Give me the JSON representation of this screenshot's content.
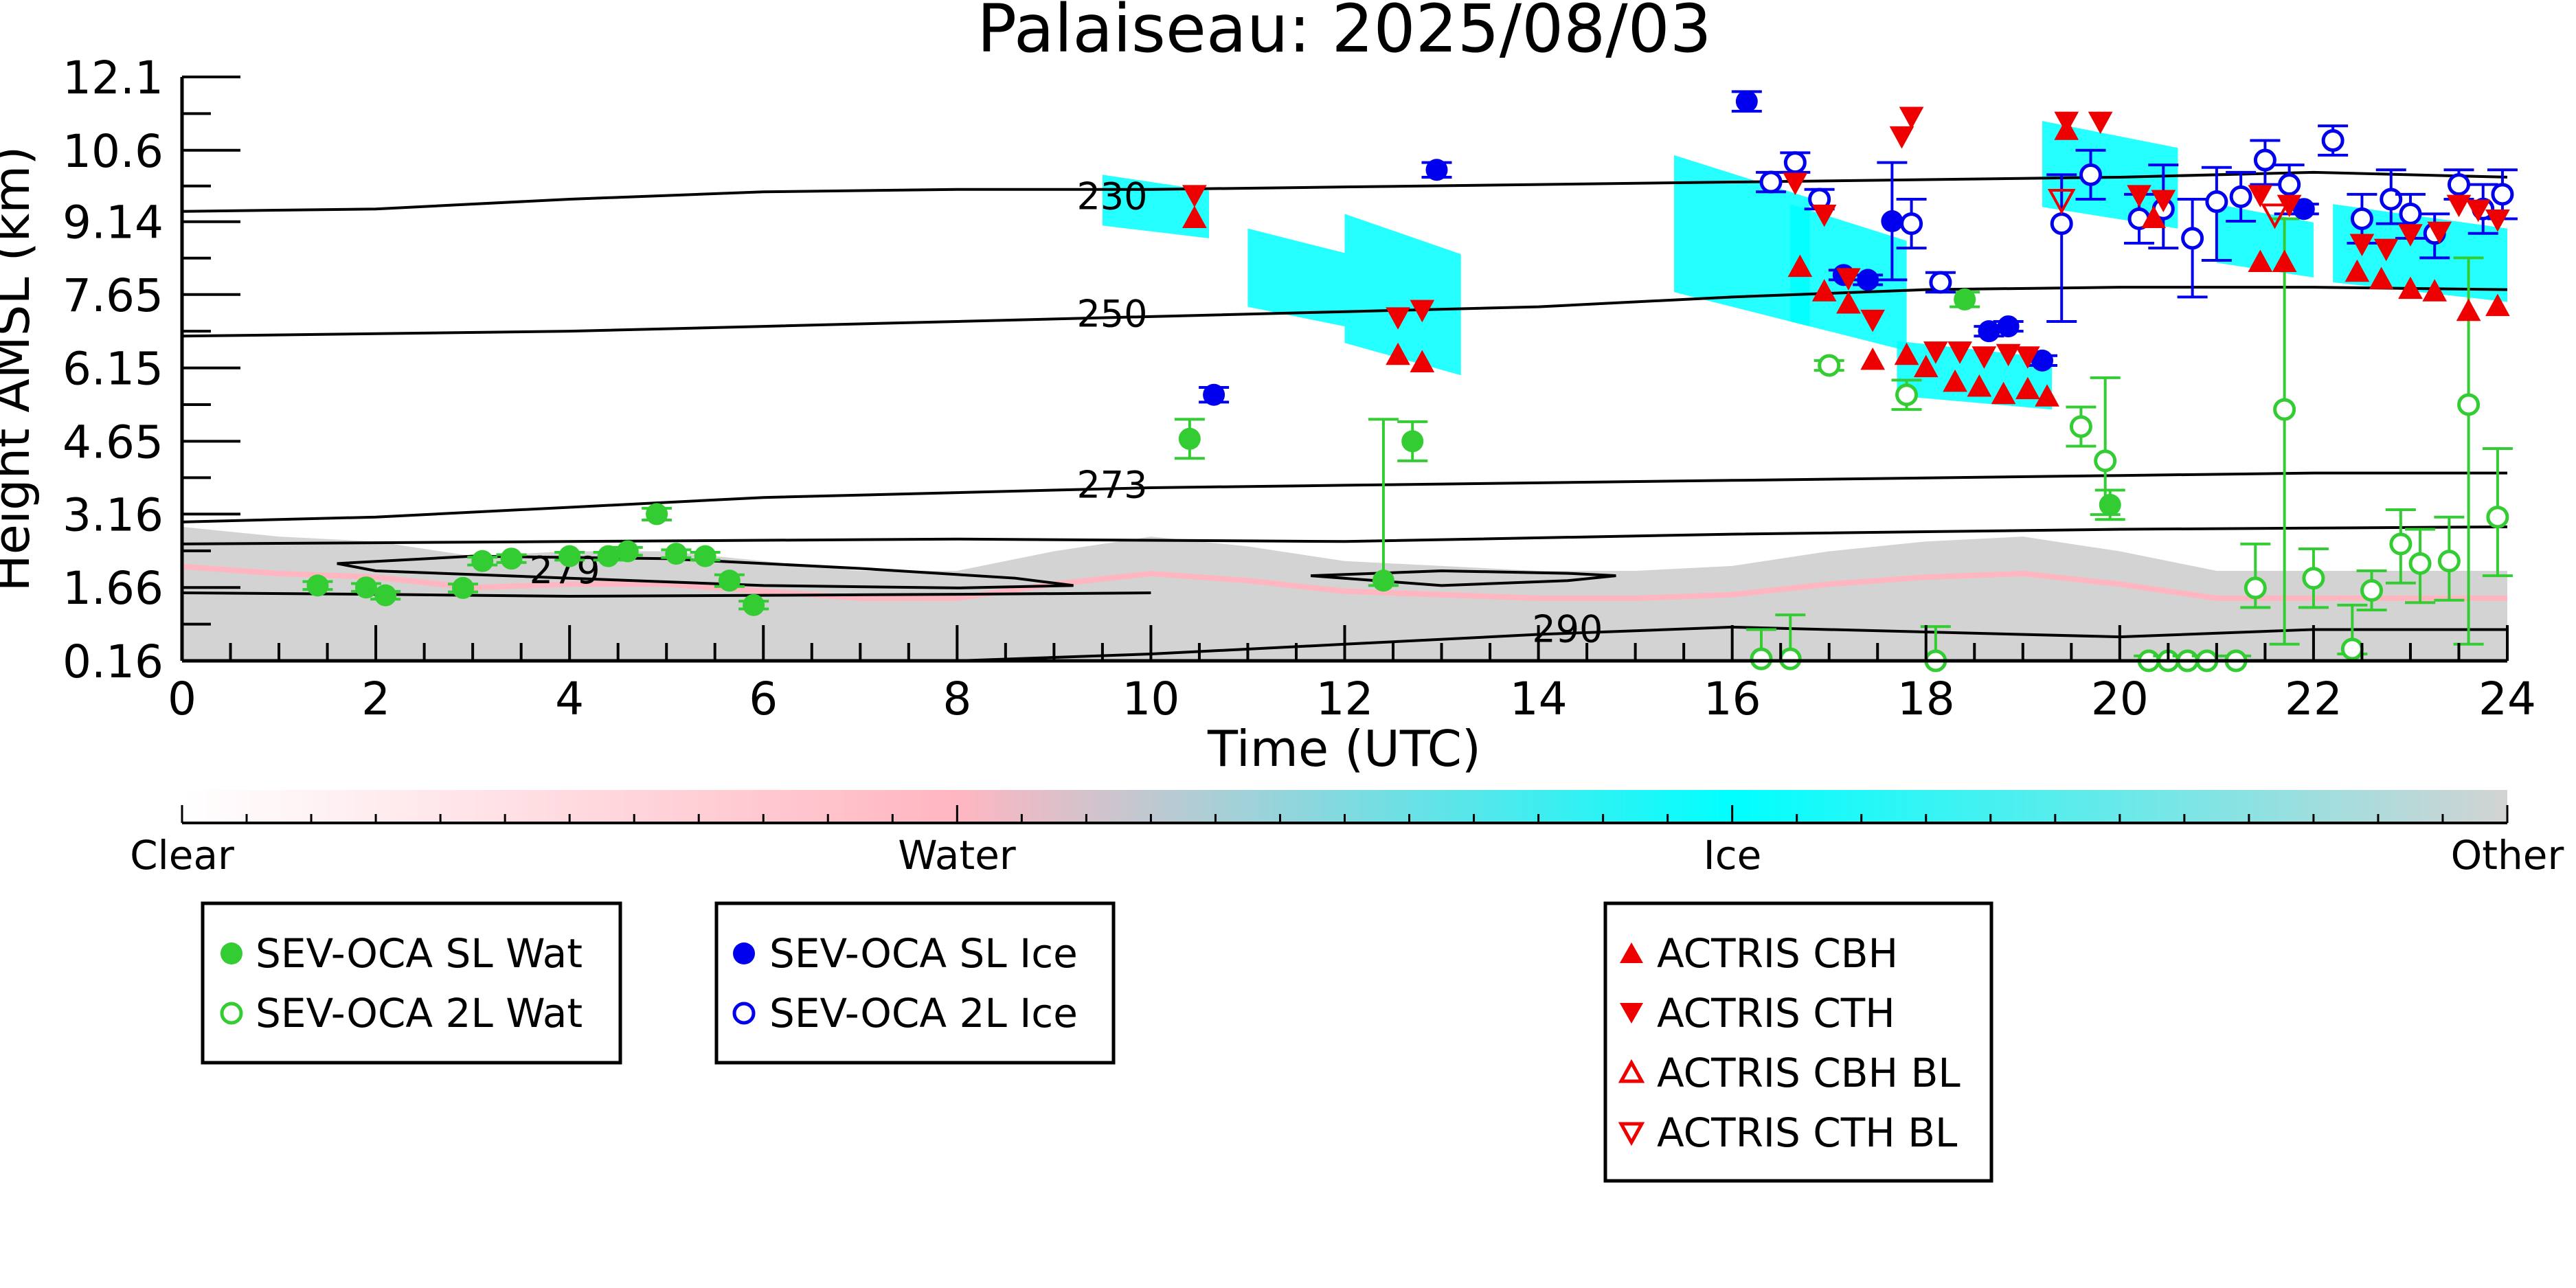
{
  "chart_data": {
    "type": "scatter",
    "title": "Palaiseau: 2025/08/03",
    "xlabel": "Time (UTC)",
    "ylabel": "Height AMSL (km)",
    "xlim": [
      0,
      24
    ],
    "ylim": [
      0.16,
      12.1
    ],
    "x_ticks": [
      "0",
      "2",
      "4",
      "6",
      "8",
      "10",
      "12",
      "14",
      "16",
      "18",
      "20",
      "22",
      "24"
    ],
    "y_ticks": [
      "0.16",
      "1.66",
      "3.16",
      "4.65",
      "6.15",
      "7.65",
      "9.14",
      "10.6",
      "12.1"
    ],
    "y_tick_values": [
      0.16,
      1.66,
      3.16,
      4.65,
      6.15,
      7.65,
      9.14,
      10.6,
      12.1
    ],
    "colorbar": {
      "labels": [
        "Clear",
        "Water",
        "Ice",
        "Other"
      ],
      "colors": [
        "#ffffff",
        "#ffb6c1",
        "#00ffff",
        "#d3d3d3"
      ]
    },
    "background_regions": [
      {
        "kind": "Other",
        "color": "#d3d3d3",
        "x": [
          0,
          24
        ],
        "y_top": [
          2.9,
          2.7,
          2.6,
          2.3,
          2.4,
          2.4,
          2.2,
          2.0,
          2.0,
          2.4,
          2.7,
          2.5,
          2.2,
          2.1,
          2.0,
          2.0,
          2.1,
          2.4,
          2.6,
          2.7,
          2.4,
          2.0,
          2.0,
          2.0,
          2.0
        ]
      },
      {
        "kind": "Ice",
        "color": "#00ffff",
        "x": [
          9.5,
          10.6
        ],
        "y": [
          8.8,
          10.1
        ]
      },
      {
        "kind": "Ice",
        "color": "#00ffff",
        "x": [
          11.0,
          12.0
        ],
        "y": [
          7.0,
          9.0
        ]
      },
      {
        "kind": "Ice",
        "color": "#00ffff",
        "x": [
          12.0,
          13.2
        ],
        "y": [
          6.0,
          9.3
        ]
      },
      {
        "kind": "Ice",
        "color": "#00ffff",
        "x": [
          15.4,
          16.8
        ],
        "y": [
          7.0,
          10.5
        ]
      },
      {
        "kind": "Ice",
        "color": "#00ffff",
        "x": [
          16.6,
          17.8
        ],
        "y": [
          6.5,
          9.5
        ]
      },
      {
        "kind": "Ice",
        "color": "#00ffff",
        "x": [
          17.7,
          19.3
        ],
        "y": [
          5.3,
          6.7
        ]
      },
      {
        "kind": "Ice",
        "color": "#00ffff",
        "x": [
          19.2,
          20.6
        ],
        "y": [
          9.0,
          11.2
        ]
      },
      {
        "kind": "Ice",
        "color": "#00ffff",
        "x": [
          21.0,
          22.0
        ],
        "y": [
          8.0,
          9.5
        ]
      },
      {
        "kind": "Ice",
        "color": "#00ffff",
        "x": [
          22.2,
          24.0
        ],
        "y": [
          7.5,
          9.5
        ]
      }
    ],
    "contours": [
      {
        "label": "230",
        "label_at": [
          9.6,
          9.65
        ],
        "x": [
          0,
          2,
          4,
          6,
          8,
          10,
          12,
          14,
          16,
          18,
          20,
          22,
          24
        ],
        "y": [
          9.35,
          9.4,
          9.6,
          9.75,
          9.8,
          9.8,
          9.85,
          9.9,
          9.95,
          10.0,
          10.05,
          10.15,
          10.05
        ]
      },
      {
        "label": "250",
        "label_at": [
          9.6,
          7.25
        ],
        "x": [
          0,
          2,
          4,
          6,
          8,
          10,
          12,
          14,
          16,
          18,
          20,
          22,
          24
        ],
        "y": [
          6.8,
          6.85,
          6.9,
          7.0,
          7.1,
          7.2,
          7.3,
          7.4,
          7.6,
          7.75,
          7.8,
          7.8,
          7.75
        ]
      },
      {
        "label": "273",
        "label_at": [
          9.6,
          3.75
        ],
        "x": [
          0,
          2,
          4,
          6,
          8,
          10,
          12,
          14,
          16,
          18,
          20,
          22,
          24
        ],
        "y": [
          3.0,
          3.1,
          3.3,
          3.5,
          3.6,
          3.7,
          3.75,
          3.8,
          3.85,
          3.9,
          3.95,
          4.0,
          4.0
        ]
      },
      {
        "label": "",
        "x": [
          0,
          4,
          8,
          12,
          16,
          20,
          24
        ],
        "y": [
          2.55,
          2.6,
          2.65,
          2.6,
          2.75,
          2.85,
          2.9
        ]
      },
      {
        "label": "279",
        "label_at": [
          3.95,
          2.0
        ],
        "closed": true,
        "x": [
          1.6,
          3.0,
          5.0,
          7.0,
          8.6,
          9.2,
          8.0,
          6.0,
          4.0,
          2.0,
          1.6
        ],
        "y": [
          2.15,
          2.3,
          2.25,
          2.05,
          1.85,
          1.7,
          1.65,
          1.7,
          1.85,
          2.0,
          2.15
        ]
      },
      {
        "label": "",
        "closed": true,
        "x": [
          11.65,
          13.0,
          14.3,
          14.8,
          14.3,
          13.0,
          11.65
        ],
        "y": [
          1.9,
          2.0,
          1.95,
          1.9,
          1.8,
          1.7,
          1.9
        ]
      },
      {
        "label": "",
        "x": [
          0,
          2,
          4,
          6,
          8,
          10
        ],
        "y": [
          1.55,
          1.52,
          1.48,
          1.5,
          1.52,
          1.55
        ]
      },
      {
        "label": "290",
        "label_at": [
          14.3,
          0.8
        ],
        "x": [
          8.0,
          10.0,
          12.0,
          14.0,
          16.0,
          18.0,
          20.0,
          22.0,
          24.0
        ],
        "y": [
          0.16,
          0.3,
          0.5,
          0.7,
          0.85,
          0.75,
          0.65,
          0.8,
          0.8
        ]
      }
    ],
    "series": [
      {
        "name": "SEV-OCA SL Wat",
        "marker": "circle-filled",
        "color": "#33cc33",
        "points": [
          [
            1.4,
            1.7
          ],
          [
            1.9,
            1.66
          ],
          [
            2.1,
            1.5
          ],
          [
            2.9,
            1.65
          ],
          [
            3.1,
            2.2
          ],
          [
            3.4,
            2.25
          ],
          [
            4.0,
            2.3
          ],
          [
            4.4,
            2.3
          ],
          [
            4.6,
            2.4
          ],
          [
            4.9,
            3.16
          ],
          [
            5.1,
            2.35
          ],
          [
            5.4,
            2.3
          ],
          [
            5.65,
            1.8
          ],
          [
            5.9,
            1.3
          ],
          [
            10.4,
            4.7
          ],
          [
            12.4,
            1.8
          ],
          [
            12.7,
            4.65
          ],
          [
            18.4,
            7.55
          ],
          [
            19.9,
            3.35
          ]
        ],
        "err_low": [
          0.08,
          0.08,
          0.08,
          0.08,
          0.08,
          0.08,
          0.08,
          0.08,
          0.08,
          0.12,
          0.08,
          0.08,
          0.12,
          0.08,
          0.4,
          0.1,
          0.4,
          0.15,
          0.3
        ],
        "err_high": [
          0.08,
          0.08,
          0.08,
          0.08,
          0.08,
          0.08,
          0.08,
          0.08,
          0.08,
          0.12,
          0.08,
          0.08,
          0.12,
          0.08,
          0.4,
          3.3,
          0.4,
          0.15,
          0.3
        ]
      },
      {
        "name": "SEV-OCA 2L Wat",
        "marker": "circle-open",
        "color": "#33cc33",
        "points": [
          [
            16.3,
            0.2
          ],
          [
            16.6,
            0.2
          ],
          [
            17.0,
            6.2
          ],
          [
            17.8,
            5.6
          ],
          [
            18.1,
            0.16
          ],
          [
            19.6,
            4.95
          ],
          [
            19.85,
            4.25
          ],
          [
            20.3,
            0.16
          ],
          [
            20.5,
            0.16
          ],
          [
            20.7,
            0.16
          ],
          [
            20.9,
            0.16
          ],
          [
            21.2,
            0.16
          ],
          [
            21.4,
            1.65
          ],
          [
            21.7,
            5.3
          ],
          [
            22.0,
            1.85
          ],
          [
            22.4,
            0.4
          ],
          [
            22.6,
            1.6
          ],
          [
            22.9,
            2.55
          ],
          [
            23.1,
            2.15
          ],
          [
            23.4,
            2.2
          ],
          [
            23.6,
            5.4
          ],
          [
            23.9,
            3.1
          ]
        ],
        "err_low": [
          0.1,
          0.1,
          0.1,
          0.3,
          0.1,
          0.4,
          1.1,
          0.1,
          0.1,
          0.1,
          0.1,
          0.1,
          0.4,
          4.8,
          0.6,
          0.1,
          0.4,
          0.8,
          0.8,
          0.8,
          4.9,
          1.2
        ],
        "err_high": [
          0.6,
          0.9,
          0.1,
          0.3,
          0.7,
          0.4,
          1.7,
          0.1,
          0.1,
          0.1,
          0.1,
          0.1,
          0.9,
          3.9,
          0.6,
          0.9,
          0.4,
          0.7,
          0.7,
          0.9,
          3.0,
          1.4
        ]
      },
      {
        "name": "SEV-OCA SL Ice",
        "marker": "circle-filled",
        "color": "#0000ee",
        "points": [
          [
            10.65,
            5.6
          ],
          [
            12.95,
            10.2
          ],
          [
            16.15,
            11.6
          ],
          [
            17.15,
            8.05
          ],
          [
            17.4,
            7.95
          ],
          [
            17.65,
            9.15
          ],
          [
            18.65,
            6.9
          ],
          [
            18.85,
            7.0
          ],
          [
            19.2,
            6.3
          ],
          [
            21.9,
            9.4
          ]
        ],
        "err_low": [
          0.15,
          0.15,
          0.2,
          0.1,
          0.1,
          1.2,
          0.1,
          0.1,
          0.1,
          0.1
        ],
        "err_high": [
          0.15,
          0.15,
          0.2,
          0.1,
          0.1,
          1.2,
          0.1,
          0.1,
          0.1,
          0.1
        ]
      },
      {
        "name": "SEV-OCA 2L Ice",
        "marker": "circle-open",
        "color": "#0000ee",
        "points": [
          [
            16.4,
            9.95
          ],
          [
            16.65,
            10.35
          ],
          [
            16.9,
            9.6
          ],
          [
            17.85,
            9.1
          ],
          [
            18.15,
            7.9
          ],
          [
            19.4,
            9.1
          ],
          [
            19.7,
            10.1
          ],
          [
            20.2,
            9.2
          ],
          [
            20.45,
            9.4
          ],
          [
            20.75,
            8.8
          ],
          [
            21.0,
            9.55
          ],
          [
            21.25,
            9.65
          ],
          [
            21.5,
            10.4
          ],
          [
            21.75,
            9.9
          ],
          [
            22.2,
            10.8
          ],
          [
            22.5,
            9.2
          ],
          [
            22.8,
            9.6
          ],
          [
            23.0,
            9.3
          ],
          [
            23.25,
            8.9
          ],
          [
            23.5,
            9.9
          ],
          [
            23.75,
            9.4
          ],
          [
            23.95,
            9.7
          ]
        ],
        "err_low": [
          0.2,
          0.2,
          0.2,
          0.5,
          0.2,
          2.0,
          0.5,
          0.5,
          0.8,
          1.2,
          1.2,
          0.5,
          0.5,
          0.6,
          0.3,
          0.5,
          0.5,
          0.5,
          0.5,
          0.3,
          0.5,
          0.5
        ],
        "err_high": [
          0.2,
          0.2,
          0.2,
          0.5,
          0.2,
          1.0,
          0.5,
          0.5,
          0.9,
          0.8,
          0.7,
          0.5,
          0.4,
          0.4,
          0.3,
          0.5,
          0.6,
          0.4,
          0.4,
          0.3,
          0.5,
          0.5
        ]
      },
      {
        "name": "ACTRIS CBH",
        "marker": "triangle-up-filled",
        "color": "#ee0000",
        "points": [
          [
            10.45,
            9.2
          ],
          [
            12.55,
            6.4
          ],
          [
            12.8,
            6.25
          ],
          [
            16.7,
            8.2
          ],
          [
            16.95,
            7.7
          ],
          [
            17.2,
            7.45
          ],
          [
            17.45,
            6.3
          ],
          [
            17.8,
            6.4
          ],
          [
            18.0,
            6.15
          ],
          [
            18.3,
            5.85
          ],
          [
            18.55,
            5.75
          ],
          [
            18.8,
            5.6
          ],
          [
            19.05,
            5.7
          ],
          [
            19.25,
            5.55
          ],
          [
            19.45,
            11.0
          ],
          [
            20.35,
            9.2
          ],
          [
            21.45,
            8.3
          ],
          [
            21.7,
            8.3
          ],
          [
            22.45,
            8.1
          ],
          [
            22.7,
            7.95
          ],
          [
            23.0,
            7.75
          ],
          [
            23.25,
            7.7
          ],
          [
            23.6,
            7.3
          ],
          [
            23.9,
            7.4
          ]
        ]
      },
      {
        "name": "ACTRIS CTH",
        "marker": "triangle-down-filled",
        "color": "#ee0000",
        "points": [
          [
            10.45,
            9.7
          ],
          [
            12.55,
            7.2
          ],
          [
            12.8,
            7.35
          ],
          [
            16.65,
            9.95
          ],
          [
            16.95,
            9.3
          ],
          [
            17.2,
            8.0
          ],
          [
            17.45,
            7.15
          ],
          [
            17.75,
            10.9
          ],
          [
            17.85,
            11.3
          ],
          [
            18.1,
            6.5
          ],
          [
            18.35,
            6.5
          ],
          [
            18.6,
            6.4
          ],
          [
            18.85,
            6.45
          ],
          [
            19.05,
            6.4
          ],
          [
            19.45,
            11.2
          ],
          [
            19.8,
            11.2
          ],
          [
            20.2,
            9.7
          ],
          [
            20.45,
            9.6
          ],
          [
            21.45,
            9.7
          ],
          [
            21.75,
            9.5
          ],
          [
            22.5,
            8.7
          ],
          [
            22.75,
            8.6
          ],
          [
            23.0,
            8.9
          ],
          [
            23.3,
            8.95
          ],
          [
            23.5,
            9.5
          ],
          [
            23.7,
            9.4
          ],
          [
            23.9,
            9.2
          ]
        ]
      },
      {
        "name": "ACTRIS CBH BL",
        "marker": "triangle-up-open",
        "color": "#ee0000",
        "points": []
      },
      {
        "name": "ACTRIS CTH BL",
        "marker": "triangle-down-open",
        "color": "#ee0000",
        "points": [
          [
            19.4,
            9.6
          ],
          [
            21.6,
            9.3
          ]
        ]
      }
    ]
  }
}
